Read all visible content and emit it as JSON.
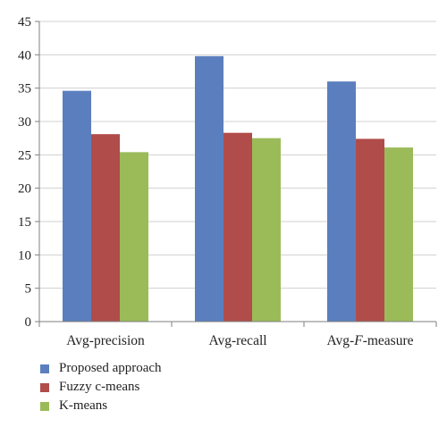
{
  "chart_data": {
    "type": "bar",
    "categories": [
      "Avg-precision",
      "Avg-recall",
      "Avg-F-measure"
    ],
    "category_parts": [
      [
        {
          "text": "Avg-precision",
          "italic": false
        }
      ],
      [
        {
          "text": "Avg-recall",
          "italic": false
        }
      ],
      [
        {
          "text": "Avg-",
          "italic": false
        },
        {
          "text": "F",
          "italic": true
        },
        {
          "text": "-measure",
          "italic": false
        }
      ]
    ],
    "series": [
      {
        "name": "Proposed approach",
        "color": "#5b7fbe",
        "values": [
          34.6,
          39.8,
          36.0
        ]
      },
      {
        "name": "Fuzzy c-means",
        "color": "#b04c4a",
        "values": [
          28.1,
          28.3,
          27.4
        ]
      },
      {
        "name": "K-means",
        "color": "#9bbb59",
        "values": [
          25.4,
          27.5,
          26.1
        ]
      }
    ],
    "title": "",
    "xlabel": "",
    "ylabel": "",
    "ylim": [
      0,
      45
    ],
    "yticks": [
      "0",
      "5",
      "10",
      "15",
      "20",
      "25",
      "30",
      "35",
      "40",
      "45"
    ],
    "grid": true,
    "legend_position": "bottom-left"
  }
}
